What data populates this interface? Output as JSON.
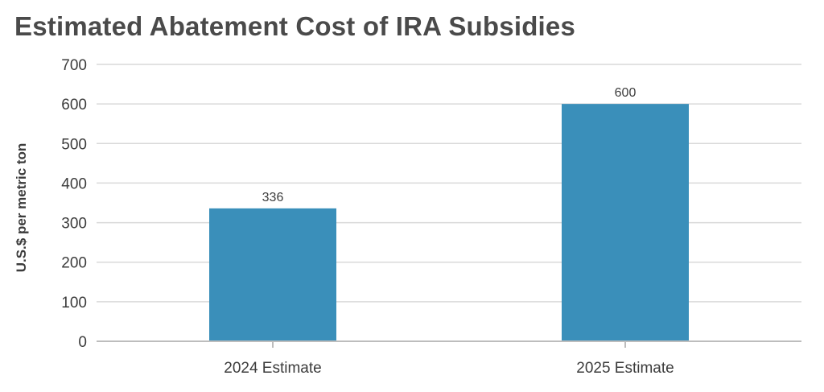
{
  "chart_data": {
    "type": "bar",
    "title": "Estimated Abatement Cost of IRA Subsidies",
    "xlabel": "",
    "ylabel": "U.S.$ per metric ton",
    "categories": [
      "2024 Estimate",
      "2025 Estimate"
    ],
    "values": [
      336,
      600
    ],
    "data_labels": [
      "336",
      "600"
    ],
    "ylim": [
      0,
      700
    ],
    "yticks": [
      0,
      100,
      200,
      300,
      400,
      500,
      600,
      700
    ],
    "grid": true,
    "legend": "none",
    "bar_color": "#3a8fba",
    "grid_color": "#d9d9d9",
    "axis_color": "#bdbdbd",
    "text_color": "#3c3c3c",
    "title_color": "#4a4a4a"
  }
}
